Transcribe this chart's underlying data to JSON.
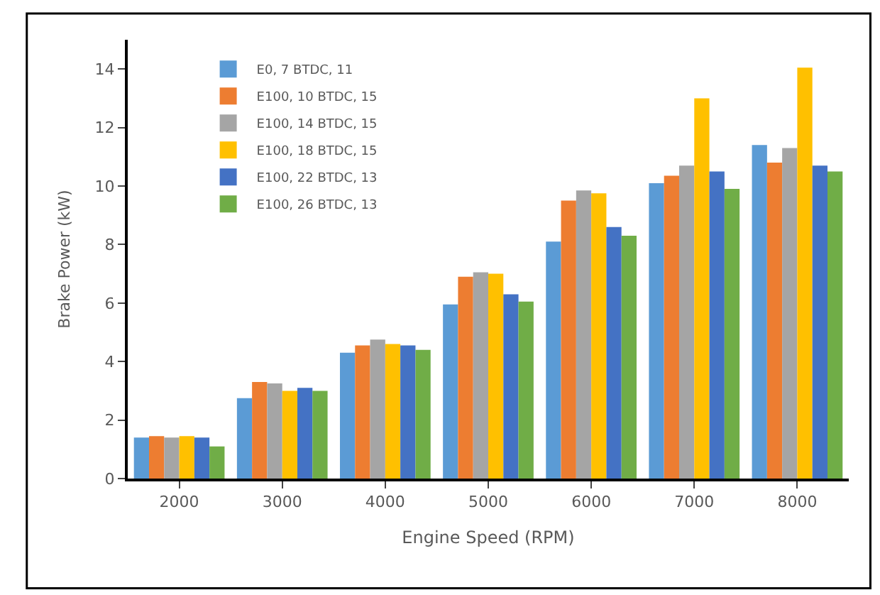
{
  "chart_data": {
    "type": "bar",
    "xlabel": "Engine Speed (RPM)",
    "ylabel": "Brake Power (kW)",
    "categories": [
      "2000",
      "3000",
      "4000",
      "5000",
      "6000",
      "7000",
      "8000"
    ],
    "series": [
      {
        "name": "E0, 7 BTDC, 11",
        "color": "#5b9bd5",
        "values": [
          1.4,
          2.75,
          4.3,
          5.95,
          8.1,
          10.1,
          11.4
        ]
      },
      {
        "name": "E100, 10 BTDC, 15",
        "color": "#ed7d31",
        "values": [
          1.45,
          3.3,
          4.55,
          6.9,
          9.5,
          10.35,
          10.8
        ]
      },
      {
        "name": "E100, 14 BTDC, 15",
        "color": "#a5a5a5",
        "values": [
          1.4,
          3.25,
          4.75,
          7.05,
          9.85,
          10.7,
          11.3
        ]
      },
      {
        "name": "E100, 18 BTDC, 15",
        "color": "#ffc000",
        "values": [
          1.45,
          3.0,
          4.6,
          7.0,
          9.75,
          13.0,
          14.05
        ]
      },
      {
        "name": "E100, 22 BTDC, 13",
        "color": "#4472c4",
        "values": [
          1.4,
          3.1,
          4.55,
          6.3,
          8.6,
          10.5,
          10.7
        ]
      },
      {
        "name": "E100, 26 BTDC, 13",
        "color": "#70ad47",
        "values": [
          1.1,
          3.0,
          4.4,
          6.05,
          8.3,
          9.9,
          10.5
        ]
      }
    ],
    "ylim": [
      0,
      15
    ],
    "yticks": [
      0,
      2,
      4,
      6,
      8,
      10,
      12,
      14
    ],
    "legend": "top left"
  }
}
